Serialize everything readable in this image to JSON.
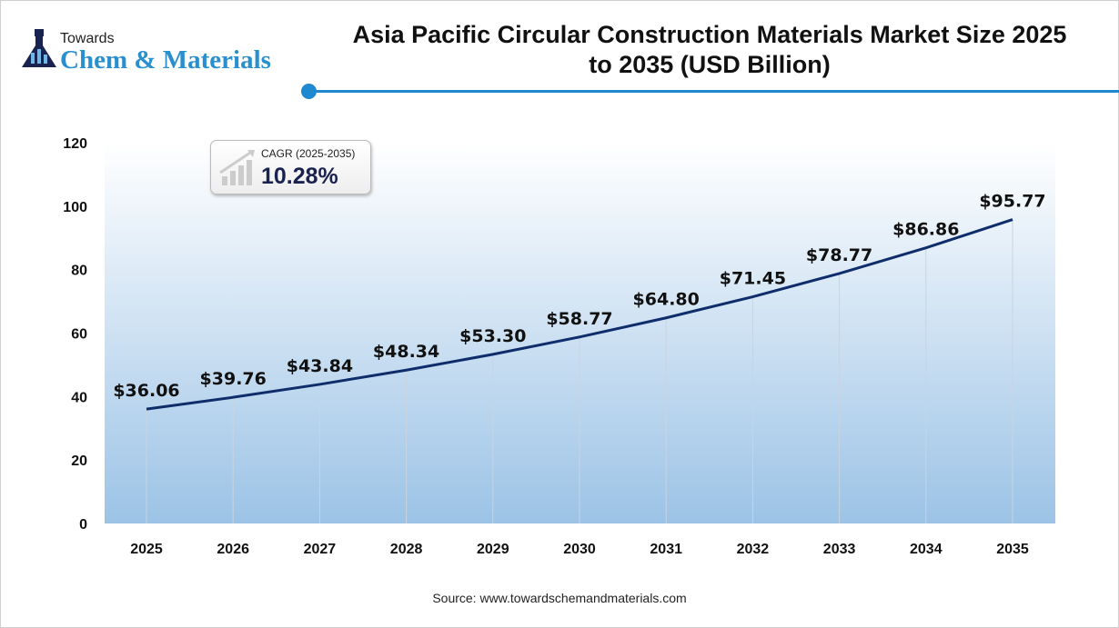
{
  "logo": {
    "line1": "Towards",
    "line2": "Chem & Materials"
  },
  "source": "Source: www.towardschemandmaterials.com",
  "cagr": {
    "label": "CAGR (2025-2035)",
    "value": "10.28%"
  },
  "colors": {
    "line": "#0f2d6b",
    "accent": "#1e88d0",
    "fill_top": "#ffffff",
    "fill_bottom": "#9cc3e6"
  },
  "chart_data": {
    "type": "area",
    "title": "Asia Pacific Circular Construction Materials Market Size 2025 to 2035 (USD Billion)",
    "categories": [
      "2025",
      "2026",
      "2027",
      "2028",
      "2029",
      "2030",
      "2031",
      "2032",
      "2033",
      "2034",
      "2035"
    ],
    "values": [
      36.06,
      39.76,
      43.84,
      48.34,
      53.3,
      58.77,
      64.8,
      71.45,
      78.77,
      86.86,
      95.77
    ],
    "labels": [
      "$36.06",
      "$39.76",
      "$43.84",
      "$48.34",
      "$53.30",
      "$58.77",
      "$64.80",
      "$71.45",
      "$78.77",
      "$86.86",
      "$95.77"
    ],
    "ylim": [
      0,
      120
    ],
    "yticks": [
      0,
      20,
      40,
      60,
      80,
      100,
      120
    ],
    "grid": "vertical lines at categories",
    "legend": "none"
  }
}
